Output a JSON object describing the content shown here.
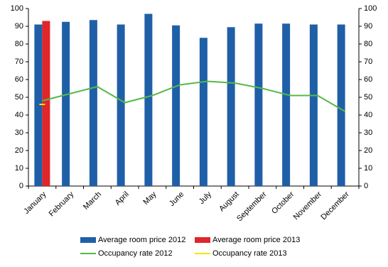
{
  "chart_data": {
    "type": "bar_line",
    "categories": [
      "January",
      "February",
      "March",
      "April",
      "May",
      "June",
      "July",
      "August",
      "September",
      "October",
      "November",
      "December"
    ],
    "series": [
      {
        "name": "Average room price 2012",
        "type": "bar",
        "color": "#1f5fa8",
        "values": [
          91,
          92.5,
          93.5,
          91,
          97,
          90.5,
          83.5,
          89.5,
          91.5,
          91.5,
          91,
          91
        ]
      },
      {
        "name": "Average room price 2013",
        "type": "bar",
        "color": "#e0262a",
        "values": [
          93,
          null,
          null,
          null,
          null,
          null,
          null,
          null,
          null,
          null,
          null,
          null
        ]
      },
      {
        "name": "Occupancy rate 2012",
        "type": "line",
        "axis": "y2",
        "color": "#55b848",
        "values": [
          48,
          52,
          56,
          47,
          51,
          57,
          59,
          58,
          55,
          51,
          51,
          42
        ]
      },
      {
        "name": "Occupancy rate 2013",
        "type": "line",
        "axis": "y2",
        "color": "#f2e600",
        "values": [
          46,
          null,
          null,
          null,
          null,
          null,
          null,
          null,
          null,
          null,
          null,
          null
        ]
      }
    ],
    "ylim": [
      0,
      100
    ],
    "yticks": [
      0,
      10,
      20,
      30,
      40,
      50,
      60,
      70,
      80,
      90,
      100
    ],
    "y2lim": [
      0,
      100
    ],
    "y2ticks": [
      0,
      10,
      20,
      30,
      40,
      50,
      60,
      70,
      80,
      90,
      100
    ],
    "grid": false
  }
}
